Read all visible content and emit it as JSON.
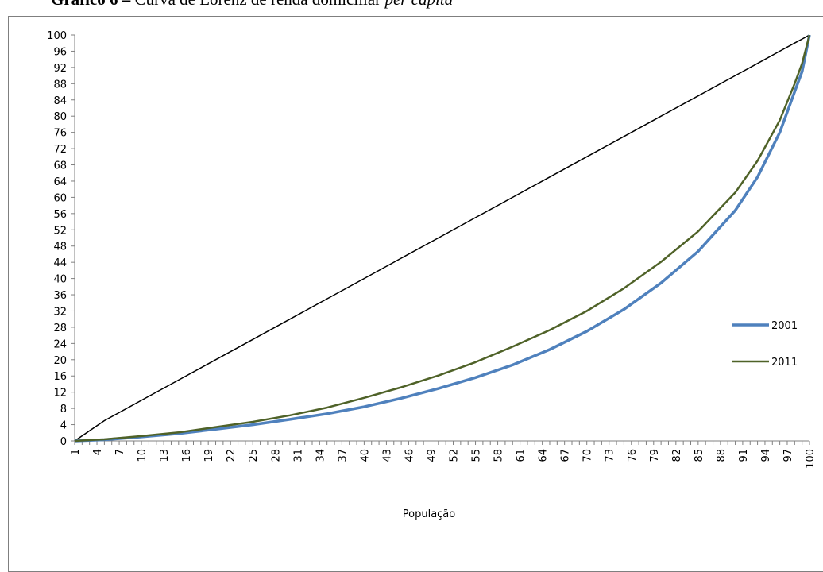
{
  "figure": {
    "title_bold": "Gráfico 6 –",
    "title_normal": " Curva de Lorenz de renda domiciliar ",
    "title_italic": "per capita"
  },
  "chart_data": {
    "type": "line",
    "title": "Gráfico 6 – Curva de Lorenz de renda domiciliar per capita",
    "xlabel": "População",
    "ylabel": "",
    "xlim": [
      1,
      100
    ],
    "ylim": [
      0,
      100
    ],
    "y_ticks": [
      0,
      4,
      8,
      12,
      16,
      20,
      24,
      28,
      32,
      36,
      40,
      44,
      48,
      52,
      56,
      60,
      64,
      68,
      72,
      76,
      80,
      84,
      88,
      92,
      96,
      100
    ],
    "x_tick_labels": [
      1,
      4,
      7,
      10,
      13,
      16,
      19,
      22,
      25,
      28,
      31,
      34,
      37,
      40,
      43,
      46,
      49,
      52,
      55,
      58,
      61,
      64,
      67,
      70,
      73,
      76,
      79,
      82,
      85,
      88,
      91,
      94,
      97,
      100
    ],
    "grid": false,
    "legend_position": "right",
    "x": [
      1,
      5,
      10,
      15,
      20,
      25,
      30,
      35,
      40,
      45,
      50,
      55,
      60,
      65,
      70,
      75,
      80,
      85,
      90,
      93,
      96,
      98,
      99,
      100
    ],
    "series": [
      {
        "name": "",
        "color": "#000000",
        "values": [
          0,
          5,
          10,
          15,
          20,
          25,
          30,
          35,
          40,
          45,
          50,
          55,
          60,
          65,
          70,
          75,
          80,
          85,
          90,
          93,
          96,
          98,
          99,
          100
        ]
      },
      {
        "name": "2001",
        "color": "#4f81bd",
        "values": [
          0,
          0.3,
          1.0,
          1.8,
          2.9,
          4.0,
          5.3,
          6.7,
          8.4,
          10.5,
          12.9,
          15.6,
          18.7,
          22.5,
          27.0,
          32.4,
          38.9,
          46.7,
          56.8,
          65.0,
          76.0,
          86.0,
          91.0,
          100
        ]
      },
      {
        "name": "2011",
        "color": "#4f6228",
        "values": [
          0,
          0.4,
          1.2,
          2.1,
          3.4,
          4.7,
          6.3,
          8.2,
          10.6,
          13.2,
          16.1,
          19.4,
          23.2,
          27.3,
          32.0,
          37.6,
          44.1,
          51.6,
          61.2,
          69.0,
          79.0,
          88.0,
          93.0,
          100
        ]
      }
    ]
  }
}
